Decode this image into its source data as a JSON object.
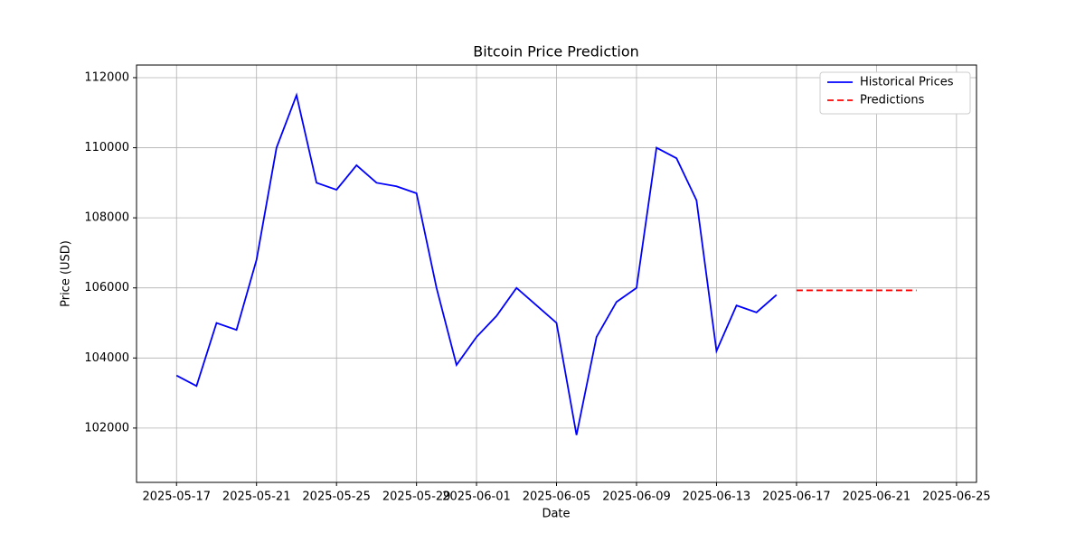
{
  "chart_data": {
    "type": "line",
    "title": "Bitcoin Price Prediction",
    "x_label": "Date",
    "y_label": "Price (USD)",
    "xlim": [
      "2025-05-15",
      "2025-06-26"
    ],
    "xticks": [
      "2025-05-17",
      "2025-05-21",
      "2025-05-25",
      "2025-05-29",
      "2025-06-01",
      "2025-06-05",
      "2025-06-09",
      "2025-06-13",
      "2025-06-17",
      "2025-06-21",
      "2025-06-25"
    ],
    "ylim": [
      100450,
      112360
    ],
    "yticks": [
      102000,
      104000,
      106000,
      108000,
      110000,
      112000
    ],
    "grid": true,
    "legend": "upper right",
    "series": [
      {
        "name": "Historical Prices",
        "color": "#0000ff",
        "dash": false,
        "x": [
          "2025-05-17",
          "2025-05-18",
          "2025-05-19",
          "2025-05-20",
          "2025-05-21",
          "2025-05-22",
          "2025-05-23",
          "2025-05-24",
          "2025-05-25",
          "2025-05-26",
          "2025-05-27",
          "2025-05-28",
          "2025-05-29",
          "2025-05-30",
          "2025-05-31",
          "2025-06-01",
          "2025-06-02",
          "2025-06-03",
          "2025-06-04",
          "2025-06-05",
          "2025-06-06",
          "2025-06-07",
          "2025-06-08",
          "2025-06-09",
          "2025-06-10",
          "2025-06-11",
          "2025-06-12",
          "2025-06-13",
          "2025-06-14",
          "2025-06-15",
          "2025-06-16"
        ],
        "values": [
          103500,
          103200,
          105000,
          104800,
          106800,
          110000,
          111500,
          109000,
          108800,
          109500,
          109000,
          108900,
          108700,
          106000,
          103800,
          104600,
          105200,
          106000,
          105500,
          105000,
          101800,
          104600,
          105600,
          106000,
          110000,
          109700,
          108500,
          104200,
          105500,
          105300,
          105800
        ]
      },
      {
        "name": "Predictions",
        "color": "#ff0000",
        "dash": true,
        "x": [
          "2025-06-17",
          "2025-06-18",
          "2025-06-19",
          "2025-06-20",
          "2025-06-21",
          "2025-06-22",
          "2025-06-23"
        ],
        "values": [
          105930,
          105930,
          105930,
          105930,
          105930,
          105930,
          105930
        ]
      }
    ]
  }
}
